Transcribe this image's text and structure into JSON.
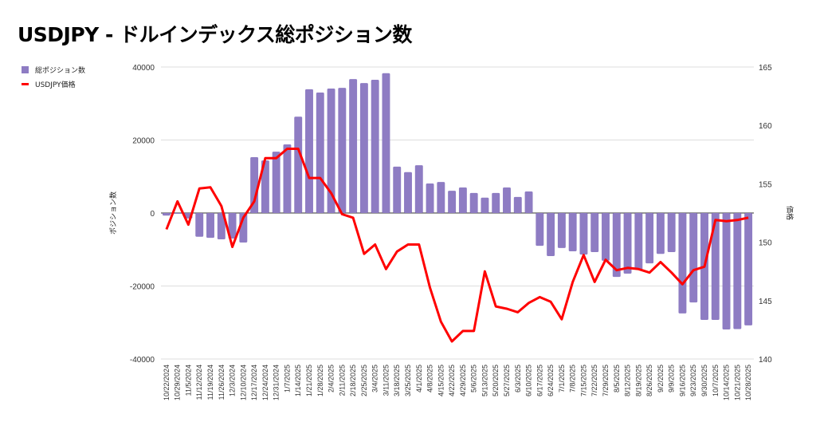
{
  "chart_data": {
    "type": "bar+line",
    "title": "USDJPY - ドルインデックス総ポジション数",
    "ylabel_left": "ポジション数",
    "ylabel_right": "価格",
    "ylim_left": [
      -40000,
      40000
    ],
    "yticks_left": [
      "40000",
      "20000",
      "0",
      "-20000",
      "-40000"
    ],
    "ylim_right": [
      140,
      165
    ],
    "yticks_right": [
      "165",
      "160",
      "155",
      "150",
      "145",
      "140"
    ],
    "grid": true,
    "legend_position": "top-left",
    "colors": {
      "bars": "#8e7cc3",
      "line": "#ff0000"
    },
    "categories": [
      "10/22/2024",
      "10/29/2024",
      "11/5/2024",
      "11/12/2024",
      "11/19/2024",
      "11/26/2024",
      "12/3/2024",
      "12/10/2024",
      "12/17/2024",
      "12/24/2024",
      "12/31/2024",
      "1/7/2025",
      "1/14/2025",
      "1/21/2025",
      "1/28/2025",
      "2/4/2025",
      "2/11/2025",
      "2/18/2025",
      "2/25/2025",
      "3/4/2025",
      "3/11/2025",
      "3/18/2025",
      "3/25/2025",
      "4/1/2025",
      "4/8/2025",
      "4/15/2025",
      "4/22/2025",
      "4/29/2025",
      "5/6/2025",
      "5/13/2025",
      "5/20/2025",
      "5/27/2025",
      "6/3/2025",
      "6/10/2025",
      "6/17/2025",
      "6/24/2025",
      "7/1/2025",
      "7/8/2025",
      "7/15/2025",
      "7/22/2025",
      "7/29/2025",
      "8/5/2025",
      "8/12/2025",
      "8/19/2025",
      "8/26/2025",
      "9/2/2025",
      "9/9/2025",
      "9/16/2025",
      "9/23/2025",
      "9/30/2025",
      "10/7/2025",
      "10/14/2025",
      "10/21/2025",
      "10/28/2025"
    ],
    "series": [
      {
        "name": "総ポジション数",
        "type": "bar",
        "axis": "left",
        "values": [
          -700,
          -200,
          -1500,
          -6500,
          -6800,
          -7200,
          -7000,
          -8100,
          15300,
          14400,
          16800,
          18800,
          26400,
          33900,
          33000,
          34100,
          34300,
          36700,
          35600,
          36500,
          38300,
          12700,
          11200,
          13100,
          8100,
          8500,
          6100,
          7000,
          5500,
          4200,
          5500,
          7000,
          4400,
          5900,
          -9000,
          -11800,
          -9600,
          -10500,
          -11400,
          -10700,
          -13100,
          -17500,
          -16600,
          -15500,
          -13800,
          -11200,
          -10700,
          -27500,
          -24500,
          -29300,
          -29300,
          -31900,
          -31800,
          -30800
        ]
      },
      {
        "name": "USDJPY価格",
        "type": "line",
        "axis": "right",
        "values": [
          151.1,
          153.5,
          151.5,
          154.6,
          154.7,
          153.1,
          149.6,
          152.1,
          153.5,
          157.2,
          157.2,
          158.0,
          158.0,
          155.5,
          155.5,
          154.2,
          152.4,
          152.1,
          149.0,
          149.8,
          147.7,
          149.2,
          149.8,
          149.8,
          146.1,
          143.2,
          141.5,
          142.4,
          142.4,
          147.5,
          144.5,
          144.3,
          144.0,
          144.8,
          145.3,
          144.9,
          143.4,
          146.6,
          148.9,
          146.6,
          148.5,
          147.6,
          147.8,
          147.7,
          147.4,
          148.3,
          147.4,
          146.4,
          147.6,
          147.9,
          151.9,
          151.8,
          151.9,
          152.1
        ]
      }
    ]
  }
}
